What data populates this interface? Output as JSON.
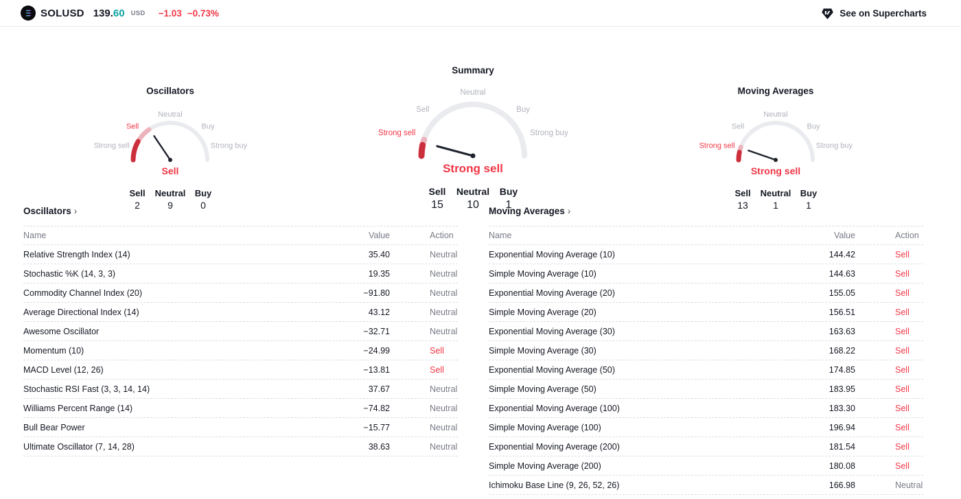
{
  "header": {
    "symbol": "SOLUSD",
    "price_main": "139.",
    "price_fraction": "60",
    "currency": "USD",
    "change": "−1.03",
    "change_percent": "−0.73%",
    "supercharts_link": "See on Supercharts"
  },
  "colors": {
    "red": "#f23645",
    "dark_red": "#cc2f3c",
    "trail_light": "rgba(242,54,69,0.30)",
    "arc_gray": "#e9ebef",
    "label_gray": "#b0b3bc",
    "needle": "#1e222d",
    "teal": "#0aa0a0",
    "text": "#131722",
    "muted": "#787b86"
  },
  "gauges": [
    {
      "title": "Oscillators",
      "labels": [
        "Strong sell",
        "Sell",
        "Neutral",
        "Buy",
        "Strong buy"
      ],
      "highlighted_label": 1,
      "needle_deg": 124,
      "trail": {
        "dark_to": 150,
        "light_to": 125
      },
      "status": "Sell",
      "count_labels": [
        "Sell",
        "Neutral",
        "Buy"
      ],
      "counts": [
        "2",
        "9",
        "0"
      ]
    },
    {
      "title": "Summary",
      "labels": [
        "Strong sell",
        "Sell",
        "Neutral",
        "Buy",
        "Strong buy"
      ],
      "highlighted_label": 0,
      "needle_deg": 165,
      "trail": {
        "dark_to": 168,
        "light_to": 162
      },
      "status": "Strong sell",
      "count_labels": [
        "Sell",
        "Neutral",
        "Buy"
      ],
      "counts": [
        "15",
        "10",
        "1"
      ]
    },
    {
      "title": "Moving Averages",
      "labels": [
        "Strong sell",
        "Sell",
        "Neutral",
        "Buy",
        "Strong buy"
      ],
      "highlighted_label": 0,
      "needle_deg": 161,
      "trail": {
        "dark_to": 168,
        "light_to": 160
      },
      "status": "Strong sell",
      "count_labels": [
        "Sell",
        "Neutral",
        "Buy"
      ],
      "counts": [
        "13",
        "1",
        "1"
      ]
    }
  ],
  "tables": {
    "oscillators": {
      "heading": "Oscillators",
      "arrow": "›",
      "columns": [
        "Name",
        "Value",
        "Action"
      ],
      "rows": [
        {
          "name": "Relative Strength Index (14)",
          "value": "35.40",
          "action": "Neutral"
        },
        {
          "name": "Stochastic %K (14, 3, 3)",
          "value": "19.35",
          "action": "Neutral"
        },
        {
          "name": "Commodity Channel Index (20)",
          "value": "−91.80",
          "action": "Neutral"
        },
        {
          "name": "Average Directional Index (14)",
          "value": "43.12",
          "action": "Neutral"
        },
        {
          "name": "Awesome Oscillator",
          "value": "−32.71",
          "action": "Neutral"
        },
        {
          "name": "Momentum (10)",
          "value": "−24.99",
          "action": "Sell"
        },
        {
          "name": "MACD Level (12, 26)",
          "value": "−13.81",
          "action": "Sell"
        },
        {
          "name": "Stochastic RSI Fast (3, 3, 14, 14)",
          "value": "37.67",
          "action": "Neutral"
        },
        {
          "name": "Williams Percent Range (14)",
          "value": "−74.82",
          "action": "Neutral"
        },
        {
          "name": "Bull Bear Power",
          "value": "−15.77",
          "action": "Neutral"
        },
        {
          "name": "Ultimate Oscillator (7, 14, 28)",
          "value": "38.63",
          "action": "Neutral"
        }
      ]
    },
    "moving_averages": {
      "heading": "Moving Averages",
      "arrow": "›",
      "columns": [
        "Name",
        "Value",
        "Action"
      ],
      "rows": [
        {
          "name": "Exponential Moving Average (10)",
          "value": "144.42",
          "action": "Sell"
        },
        {
          "name": "Simple Moving Average (10)",
          "value": "144.63",
          "action": "Sell"
        },
        {
          "name": "Exponential Moving Average (20)",
          "value": "155.05",
          "action": "Sell"
        },
        {
          "name": "Simple Moving Average (20)",
          "value": "156.51",
          "action": "Sell"
        },
        {
          "name": "Exponential Moving Average (30)",
          "value": "163.63",
          "action": "Sell"
        },
        {
          "name": "Simple Moving Average (30)",
          "value": "168.22",
          "action": "Sell"
        },
        {
          "name": "Exponential Moving Average (50)",
          "value": "174.85",
          "action": "Sell"
        },
        {
          "name": "Simple Moving Average (50)",
          "value": "183.95",
          "action": "Sell"
        },
        {
          "name": "Exponential Moving Average (100)",
          "value": "183.30",
          "action": "Sell"
        },
        {
          "name": "Simple Moving Average (100)",
          "value": "196.94",
          "action": "Sell"
        },
        {
          "name": "Exponential Moving Average (200)",
          "value": "181.54",
          "action": "Sell"
        },
        {
          "name": "Simple Moving Average (200)",
          "value": "180.08",
          "action": "Sell"
        },
        {
          "name": "Ichimoku Base Line (9, 26, 52, 26)",
          "value": "166.98",
          "action": "Neutral"
        }
      ]
    }
  }
}
